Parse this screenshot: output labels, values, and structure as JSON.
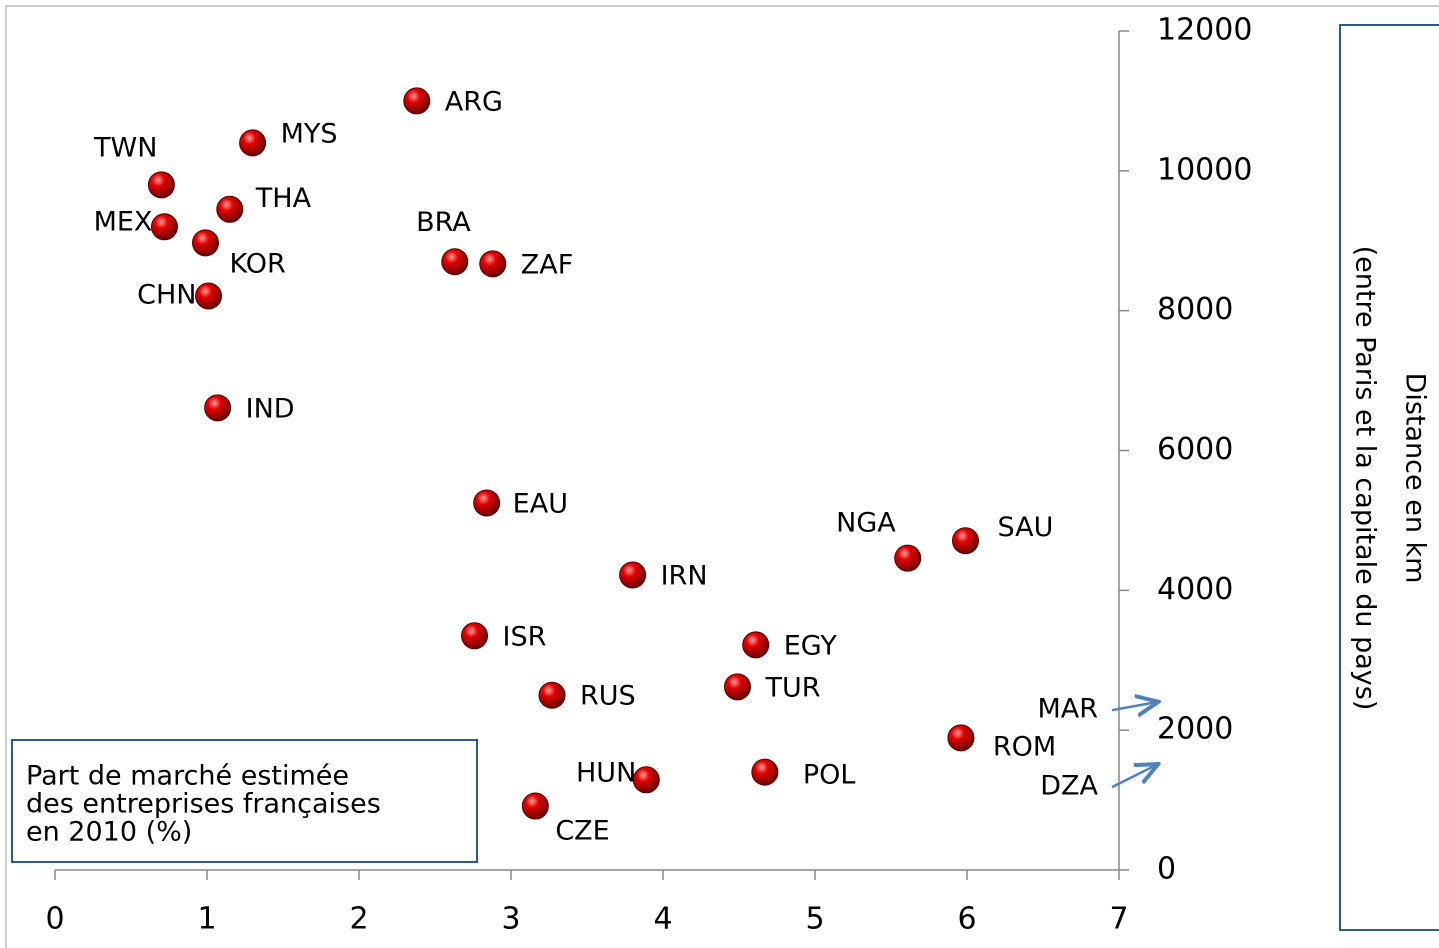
{
  "chart_data": {
    "type": "scatter",
    "x_label": [
      "Part de marché estimée",
      "des entreprises françaises",
      "en 2010 (%)"
    ],
    "y_label": [
      "Distance en km",
      "(entre Paris et la capitale du pays)"
    ],
    "series": [
      {
        "name": null,
        "color": "#d40000",
        "labels": [
          "ARG",
          "MYS",
          "TWN",
          "THA",
          "MEX",
          "KOR",
          "CHN",
          "BRA",
          "ZAF",
          "IND",
          "EAU",
          "NGA",
          "SAU",
          "IRN",
          "ISR",
          "EGY",
          "RUS",
          "TUR",
          "ROM",
          "HUN",
          "POL",
          "CZE"
        ],
        "x": [
          2.38,
          1.3,
          0.7,
          1.15,
          0.72,
          0.99,
          1.01,
          2.63,
          2.88,
          1.07,
          2.84,
          5.61,
          5.99,
          3.8,
          2.76,
          4.61,
          3.27,
          4.49,
          5.96,
          3.89,
          4.67,
          3.16
        ],
        "values": [
          11000,
          10400,
          9800,
          9450,
          9200,
          8970,
          8210,
          8700,
          8670,
          6610,
          5250,
          4460,
          4710,
          4220,
          3350,
          3220,
          2500,
          2620,
          1890,
          1290,
          1400,
          915
        ]
      }
    ],
    "annotations": [
      {
        "text": "MAR",
        "y": 2400
      },
      {
        "text": "DZA",
        "y": 1500
      }
    ],
    "xlim": [
      0,
      7
    ],
    "xticks": [
      0,
      1,
      2,
      3,
      4,
      5,
      6,
      7
    ],
    "ylim": [
      0,
      12000
    ],
    "yticks": [
      0,
      2000,
      4000,
      6000,
      8000,
      10000,
      12000
    ]
  }
}
